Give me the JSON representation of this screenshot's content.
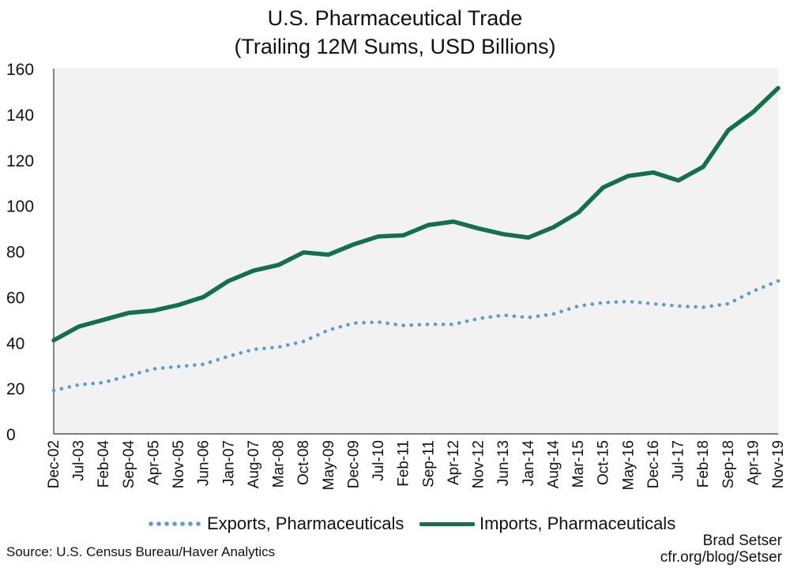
{
  "chart_data": {
    "type": "line",
    "title": "U.S. Pharmaceutical Trade",
    "subtitle": "(Trailing 12M Sums, USD Billions)",
    "xlabel": "",
    "ylabel": "",
    "ylim": [
      0,
      160
    ],
    "yticks": [
      0,
      20,
      40,
      60,
      80,
      100,
      120,
      140,
      160
    ],
    "grid": false,
    "background": "#f2f2f2",
    "legend_position": "bottom",
    "xtick_labels": [
      "Dec-02",
      "Jul-03",
      "Feb-04",
      "Sep-04",
      "Apr-05",
      "Nov-05",
      "Jun-06",
      "Jan-07",
      "Aug-07",
      "Mar-08",
      "Oct-08",
      "May-09",
      "Dec-09",
      "Jul-10",
      "Feb-11",
      "Sep-11",
      "Apr-12",
      "Nov-12",
      "Jun-13",
      "Jan-14",
      "Aug-14",
      "Mar-15",
      "Oct-15",
      "May-16",
      "Dec-16",
      "Jul-17",
      "Feb-18",
      "Sep-18",
      "Apr-19",
      "Nov-19"
    ],
    "series": [
      {
        "name": "Exports, Pharmaceuticals",
        "color": "#5b9bd5",
        "style": "dotted",
        "values": [
          19.0,
          21.5,
          22.5,
          25.5,
          28.5,
          29.5,
          30.5,
          34.0,
          37.0,
          38.0,
          40.5,
          45.5,
          48.5,
          49.0,
          47.5,
          48.0,
          48.0,
          50.5,
          52.0,
          51.0,
          52.5,
          56.0,
          57.5,
          58.0,
          57.0,
          56.0,
          55.5,
          57.0,
          62.5,
          67.0
        ]
      },
      {
        "name": "Imports, Pharmaceuticals",
        "color": "#13704a",
        "style": "solid",
        "values": [
          41.0,
          47.0,
          50.0,
          53.0,
          54.0,
          56.5,
          60.0,
          67.0,
          71.5,
          74.0,
          79.5,
          78.5,
          83.0,
          86.5,
          87.0,
          91.5,
          93.0,
          90.0,
          87.5,
          86.0,
          90.5,
          97.0,
          108.0,
          113.0,
          114.5,
          111.0,
          117.0,
          133.0,
          141.0,
          151.5
        ]
      }
    ]
  },
  "legend": {
    "exports_label": "Exports, Pharmaceuticals",
    "imports_label": "Imports, Pharmaceuticals"
  },
  "footer": {
    "source": "Source: U.S. Census Bureau/Haver Analytics",
    "author": "Brad Setser",
    "site": "cfr.org/blog/Setser"
  }
}
